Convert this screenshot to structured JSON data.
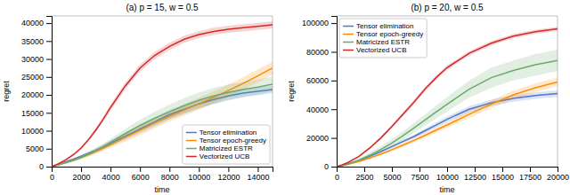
{
  "chart_data": [
    {
      "type": "line",
      "title": "(a) p = 15, w = 0.5",
      "x_label": "time",
      "y_label": "regret",
      "x": [
        0,
        500,
        1000,
        1500,
        2000,
        2500,
        3000,
        3500,
        4000,
        5000,
        6000,
        7000,
        8000,
        9000,
        10000,
        11000,
        12000,
        13000,
        14000,
        15000
      ],
      "series": [
        {
          "name": "Tensor elimination",
          "color": "#4878cf",
          "values": [
            0,
            700,
            1400,
            2100,
            2900,
            3700,
            4600,
            5500,
            6500,
            8500,
            10500,
            12500,
            14500,
            16000,
            17500,
            18700,
            19700,
            20500,
            21000,
            21500
          ],
          "lower": [
            0,
            600,
            1200,
            1800,
            2500,
            3200,
            4000,
            4800,
            5700,
            7500,
            9300,
            11200,
            13200,
            14700,
            16200,
            17500,
            18500,
            19400,
            19900,
            20500
          ],
          "upper": [
            0,
            800,
            1600,
            2400,
            3300,
            4200,
            5200,
            6200,
            7300,
            9500,
            11700,
            13800,
            15800,
            17300,
            18800,
            19900,
            20900,
            21600,
            22100,
            22500
          ]
        },
        {
          "name": "Tensor epoch-greedy",
          "color": "#ff8c00",
          "values": [
            0,
            600,
            1200,
            1800,
            2500,
            3300,
            4200,
            5100,
            6100,
            8200,
            10200,
            12200,
            14000,
            15800,
            17500,
            19300,
            21200,
            23200,
            25300,
            27500
          ],
          "lower": [
            0,
            500,
            1000,
            1500,
            2100,
            2800,
            3500,
            4300,
            5200,
            7000,
            8800,
            10700,
            12500,
            14200,
            15800,
            17600,
            19500,
            21500,
            23500,
            25700
          ],
          "upper": [
            0,
            700,
            1400,
            2100,
            2900,
            3800,
            4900,
            5900,
            7000,
            9400,
            11600,
            13700,
            15500,
            17400,
            19200,
            21000,
            22900,
            24900,
            27100,
            29300
          ]
        },
        {
          "name": "Matricized ESTR",
          "color": "#6aab6a",
          "values": [
            0,
            500,
            1100,
            1800,
            2600,
            3500,
            4500,
            5600,
            6800,
            9200,
            11500,
            13500,
            15300,
            17000,
            18500,
            19700,
            20700,
            21500,
            22200,
            23000
          ],
          "lower": [
            0,
            400,
            900,
            1400,
            2100,
            2900,
            3800,
            4800,
            5800,
            7900,
            9900,
            11700,
            13300,
            14900,
            16300,
            17500,
            18500,
            19400,
            20100,
            20900
          ],
          "upper": [
            0,
            600,
            1300,
            2200,
            3100,
            4100,
            5200,
            6400,
            7800,
            10500,
            13100,
            15300,
            17300,
            19100,
            20700,
            21900,
            22900,
            23600,
            24300,
            25100
          ]
        },
        {
          "name": "Vectorized UCB",
          "color": "#d62728",
          "values": [
            0,
            900,
            2000,
            3400,
            5200,
            7500,
            10200,
            13200,
            16500,
            22500,
            27500,
            31000,
            33500,
            35500,
            36800,
            37700,
            38300,
            38700,
            39100,
            39500
          ],
          "lower": [
            0,
            800,
            1800,
            3100,
            4800,
            7000,
            9600,
            12500,
            15700,
            21500,
            26500,
            30000,
            32500,
            34500,
            35800,
            36700,
            37300,
            37700,
            38100,
            38500
          ],
          "upper": [
            0,
            1000,
            2200,
            3700,
            5600,
            8000,
            10800,
            13900,
            17300,
            23500,
            28500,
            32000,
            34500,
            36500,
            37800,
            38700,
            39300,
            39700,
            40100,
            40500
          ]
        }
      ],
      "xlim": [
        0,
        15000
      ],
      "ylim": [
        0,
        42000
      ],
      "xticks": [
        0,
        2000,
        4000,
        6000,
        8000,
        10000,
        12000,
        14000
      ],
      "yticks": [
        0,
        5000,
        10000,
        15000,
        20000,
        25000,
        30000,
        35000,
        40000
      ],
      "legend": "lower right"
    },
    {
      "type": "line",
      "title": "(b) p = 20, w = 0.5",
      "x_label": "time",
      "y_label": "regret",
      "x": [
        0,
        500,
        1000,
        2000,
        3000,
        4000,
        5000,
        6000,
        7000,
        8000,
        9000,
        10000,
        12000,
        14000,
        16000,
        18000,
        20000
      ],
      "series": [
        {
          "name": "Tensor elimination",
          "color": "#4878cf",
          "values": [
            0,
            800,
            1800,
            4200,
            7200,
            10500,
            14000,
            17500,
            21000,
            25000,
            29000,
            33000,
            40000,
            44500,
            47500,
            49500,
            51000
          ],
          "lower": [
            0,
            700,
            1600,
            3800,
            6600,
            9700,
            13000,
            16300,
            19700,
            23500,
            27300,
            31000,
            37800,
            42200,
            45200,
            47200,
            48700
          ],
          "upper": [
            0,
            900,
            2000,
            4600,
            7800,
            11300,
            15000,
            18700,
            22300,
            26500,
            30700,
            35000,
            42200,
            46800,
            49800,
            51800,
            53300
          ]
        },
        {
          "name": "Tensor epoch-greedy",
          "color": "#ff8c00",
          "values": [
            0,
            700,
            1500,
            3500,
            6000,
            8800,
            11800,
            15000,
            18300,
            21800,
            25500,
            29000,
            36500,
            43500,
            50000,
            55000,
            59000
          ],
          "lower": [
            0,
            600,
            1300,
            3100,
            5400,
            8000,
            10700,
            13700,
            16800,
            20100,
            23700,
            27000,
            34000,
            41000,
            47000,
            52000,
            56000
          ],
          "upper": [
            0,
            800,
            1700,
            3900,
            6600,
            9600,
            12900,
            16300,
            19800,
            23500,
            27300,
            31000,
            39000,
            46000,
            53000,
            58000,
            62000
          ]
        },
        {
          "name": "Matricized ESTR",
          "color": "#6aab6a",
          "values": [
            0,
            800,
            1800,
            4500,
            8000,
            12000,
            16500,
            21500,
            27000,
            32500,
            38000,
            43500,
            54000,
            62000,
            67000,
            71000,
            74000
          ],
          "lower": [
            0,
            600,
            1400,
            3600,
            6500,
            9800,
            13800,
            18500,
            23500,
            28500,
            33500,
            38500,
            48000,
            55000,
            60000,
            63500,
            66500
          ],
          "upper": [
            0,
            1000,
            2200,
            5400,
            9500,
            14200,
            19200,
            24500,
            30500,
            36500,
            42500,
            48500,
            60000,
            69000,
            74000,
            78500,
            81500
          ]
        },
        {
          "name": "Vectorized UCB",
          "color": "#d62728",
          "values": [
            0,
            1200,
            2800,
            7000,
            13000,
            20000,
            28000,
            36500,
            45000,
            54000,
            62000,
            69000,
            79000,
            86000,
            91000,
            94000,
            96000
          ],
          "lower": [
            0,
            1100,
            2600,
            6500,
            12200,
            19000,
            26800,
            35000,
            43500,
            52500,
            60500,
            67500,
            77500,
            84500,
            89500,
            92500,
            94500
          ],
          "upper": [
            0,
            1300,
            3000,
            7500,
            13800,
            21000,
            29200,
            38000,
            46500,
            55500,
            63500,
            70500,
            80500,
            87500,
            92500,
            95500,
            97500
          ]
        }
      ],
      "xlim": [
        0,
        20000
      ],
      "ylim": [
        0,
        105000
      ],
      "xticks": [
        0,
        2500,
        5000,
        7500,
        10000,
        12500,
        15000,
        17500,
        20000
      ],
      "yticks": [
        0,
        20000,
        40000,
        60000,
        80000,
        100000
      ],
      "legend": "upper left"
    }
  ]
}
